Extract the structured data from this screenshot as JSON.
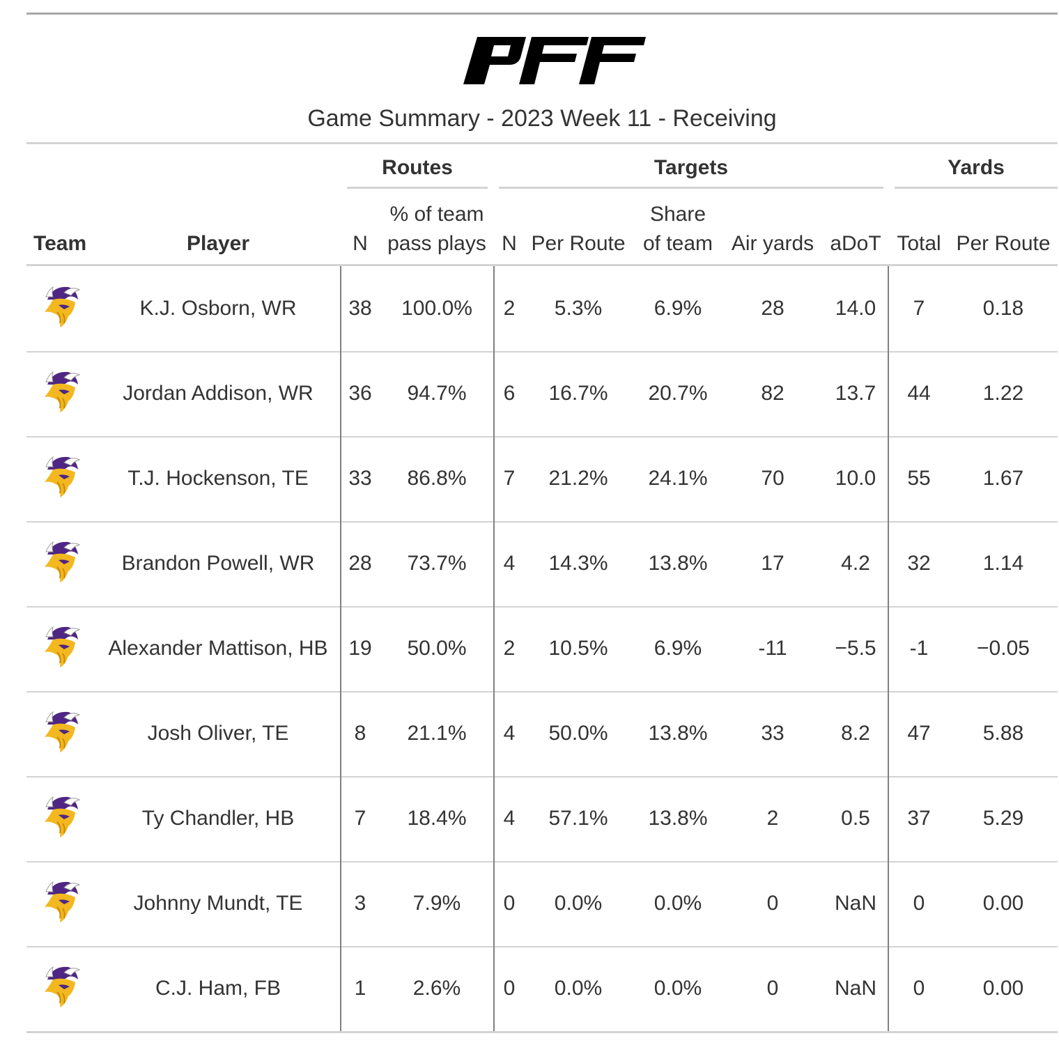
{
  "brand": "PFF",
  "subtitle": "Game Summary - 2023 Week 11 - Receiving",
  "spanners": {
    "routes": "Routes",
    "targets": "Targets",
    "yards": "Yards"
  },
  "columns": {
    "team": "Team",
    "player": "Player",
    "routes_n": "N",
    "routes_pct_line1": "% of team",
    "routes_pct_line2": "pass plays",
    "targets_n": "N",
    "targets_per_route": "Per Route",
    "targets_share_line1": "Share",
    "targets_share_line2": "of team",
    "air_yards": "Air yards",
    "adot": "aDoT",
    "yards_total": "Total",
    "yards_per_route": "Per Route"
  },
  "team_logo_icon": "vikings-helmet-icon",
  "colors": {
    "gold": "#f3b71f",
    "purple": "#4f2683",
    "rule": "#d3d3d3",
    "divider": "#808080"
  },
  "rows": [
    {
      "player": "K.J. Osborn, WR",
      "routes_n": "38",
      "routes_pct": "100.0%",
      "targets_n": "2",
      "per_route": "5.3%",
      "share": "6.9%",
      "air_yards": "28",
      "adot": "14.0",
      "yards_total": "7",
      "yards_per_route": "0.18"
    },
    {
      "player": "Jordan Addison, WR",
      "routes_n": "36",
      "routes_pct": "94.7%",
      "targets_n": "6",
      "per_route": "16.7%",
      "share": "20.7%",
      "air_yards": "82",
      "adot": "13.7",
      "yards_total": "44",
      "yards_per_route": "1.22"
    },
    {
      "player": "T.J. Hockenson, TE",
      "routes_n": "33",
      "routes_pct": "86.8%",
      "targets_n": "7",
      "per_route": "21.2%",
      "share": "24.1%",
      "air_yards": "70",
      "adot": "10.0",
      "yards_total": "55",
      "yards_per_route": "1.67"
    },
    {
      "player": "Brandon Powell, WR",
      "routes_n": "28",
      "routes_pct": "73.7%",
      "targets_n": "4",
      "per_route": "14.3%",
      "share": "13.8%",
      "air_yards": "17",
      "adot": "4.2",
      "yards_total": "32",
      "yards_per_route": "1.14"
    },
    {
      "player": "Alexander Mattison, HB",
      "routes_n": "19",
      "routes_pct": "50.0%",
      "targets_n": "2",
      "per_route": "10.5%",
      "share": "6.9%",
      "air_yards": "-11",
      "adot": "−5.5",
      "yards_total": "-1",
      "yards_per_route": "−0.05"
    },
    {
      "player": "Josh Oliver, TE",
      "routes_n": "8",
      "routes_pct": "21.1%",
      "targets_n": "4",
      "per_route": "50.0%",
      "share": "13.8%",
      "air_yards": "33",
      "adot": "8.2",
      "yards_total": "47",
      "yards_per_route": "5.88"
    },
    {
      "player": "Ty Chandler, HB",
      "routes_n": "7",
      "routes_pct": "18.4%",
      "targets_n": "4",
      "per_route": "57.1%",
      "share": "13.8%",
      "air_yards": "2",
      "adot": "0.5",
      "yards_total": "37",
      "yards_per_route": "5.29"
    },
    {
      "player": "Johnny Mundt, TE",
      "routes_n": "3",
      "routes_pct": "7.9%",
      "targets_n": "0",
      "per_route": "0.0%",
      "share": "0.0%",
      "air_yards": "0",
      "adot": "NaN",
      "yards_total": "0",
      "yards_per_route": "0.00"
    },
    {
      "player": "C.J. Ham, FB",
      "routes_n": "1",
      "routes_pct": "2.6%",
      "targets_n": "0",
      "per_route": "0.0%",
      "share": "0.0%",
      "air_yards": "0",
      "adot": "NaN",
      "yards_total": "0",
      "yards_per_route": "0.00"
    }
  ]
}
